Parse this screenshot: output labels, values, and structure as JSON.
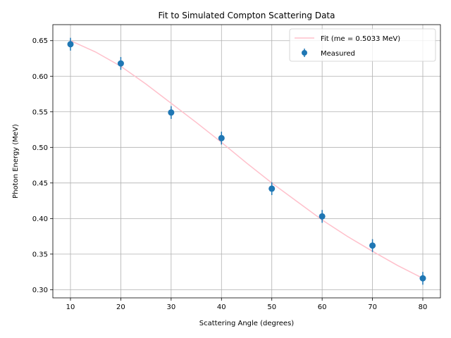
{
  "chart_data": {
    "type": "scatter",
    "title": "Fit to Simulated Compton Scattering Data",
    "xlabel": "Scattering Angle (degrees)",
    "ylabel": "Photon Energy (MeV)",
    "xlim": [
      6.5,
      83.5
    ],
    "ylim": [
      0.2885,
      0.6725
    ],
    "grid": true,
    "legend_position": "top-right",
    "x_ticks": [
      10,
      20,
      30,
      40,
      50,
      60,
      70,
      80
    ],
    "x_tick_labels": [
      "10",
      "20",
      "30",
      "40",
      "50",
      "60",
      "70",
      "80"
    ],
    "y_ticks": [
      0.3,
      0.35,
      0.4,
      0.45,
      0.5,
      0.55,
      0.6,
      0.65
    ],
    "y_tick_labels": [
      "0.30",
      "0.35",
      "0.40",
      "0.45",
      "0.50",
      "0.55",
      "0.60",
      "0.65"
    ],
    "series": [
      {
        "name": "Fit (me = 0.5033 MeV)",
        "kind": "line",
        "color": "#ffc0cb",
        "x": [
          10,
          15,
          20,
          25,
          30,
          35,
          40,
          45,
          50,
          55,
          60,
          65,
          70,
          75,
          80
        ],
        "y": [
          0.65,
          0.634,
          0.614,
          0.589,
          0.562,
          0.535,
          0.507,
          0.478,
          0.45,
          0.424,
          0.398,
          0.375,
          0.354,
          0.334,
          0.316
        ]
      },
      {
        "name": "Measured",
        "kind": "errorbar",
        "color": "#1f77b4",
        "x": [
          10,
          20,
          30,
          40,
          50,
          60,
          70,
          80
        ],
        "y": [
          0.645,
          0.618,
          0.549,
          0.513,
          0.442,
          0.403,
          0.362,
          0.316
        ],
        "yerr": [
          0.009,
          0.009,
          0.009,
          0.009,
          0.009,
          0.009,
          0.009,
          0.009
        ]
      }
    ]
  }
}
